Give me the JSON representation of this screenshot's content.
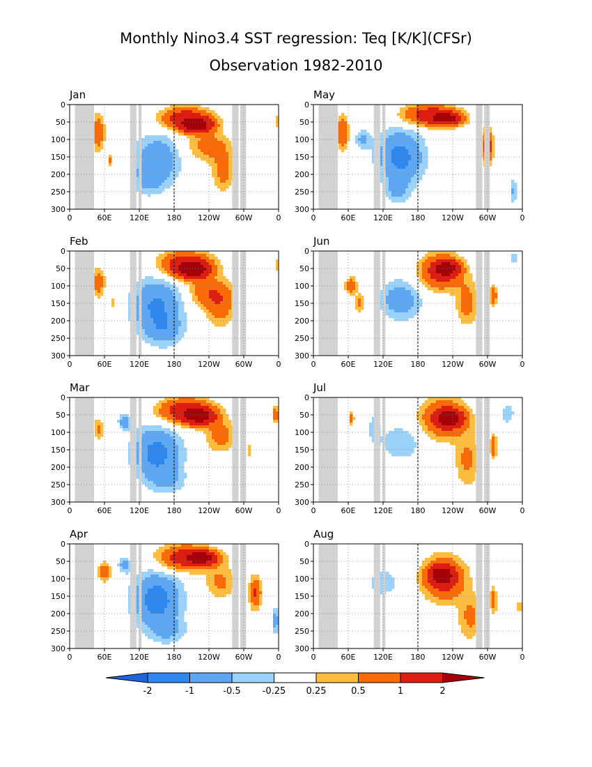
{
  "title_line1": "Monthly Nino3.4 SST regression: Teq [K/K](CFSr)",
  "title_line2": "Observation 1982-2010",
  "chart_data": {
    "type": "heatmap",
    "x_tick_labels": [
      "0",
      "60E",
      "120E",
      "180",
      "120W",
      "60W",
      "0"
    ],
    "y_tick_labels": [
      "0",
      "50",
      "100",
      "150",
      "200",
      "250",
      "300"
    ],
    "xlim_deg_east": [
      0,
      360
    ],
    "ylim_depth": [
      300,
      0
    ],
    "grid": true,
    "land_mask_lon_ranges": [
      [
        9,
        42
      ],
      [
        104,
        115
      ],
      [
        119,
        124
      ],
      [
        280,
        291
      ],
      [
        294,
        304
      ]
    ],
    "dateline_lon": 180,
    "colorbar": {
      "labels": [
        "-2",
        "-1",
        "-0.5",
        "-0.25",
        "0.25",
        "0.5",
        "1",
        "2"
      ],
      "colors": [
        "#1e64dc",
        "#2f87ee",
        "#5ea7f3",
        "#9bd2fa",
        "#ffffff",
        "#fcbd40",
        "#fa6a06",
        "#dc1d11",
        "#a5000a"
      ]
    },
    "panels": [
      {
        "label": "Jan",
        "blobs": [
          {
            "lon": 200,
            "depth": 40,
            "lw": 40,
            "lh": 30,
            "v": 1.6
          },
          {
            "lon": 220,
            "depth": 60,
            "lw": 26,
            "lh": 20,
            "v": 2.3
          },
          {
            "lon": 265,
            "depth": 190,
            "lw": 18,
            "lh": 55,
            "v": 0.7
          },
          {
            "lon": 240,
            "depth": 120,
            "lw": 35,
            "lh": 40,
            "v": 0.7
          },
          {
            "lon": 150,
            "depth": 160,
            "lw": 38,
            "lh": 70,
            "v": -0.9
          },
          {
            "lon": 135,
            "depth": 220,
            "lw": 25,
            "lh": 40,
            "v": -0.4
          },
          {
            "lon": 50,
            "depth": 80,
            "lw": 10,
            "lh": 55,
            "v": 0.8
          },
          {
            "lon": 70,
            "depth": 160,
            "lw": 5,
            "lh": 15,
            "v": 0.6
          },
          {
            "lon": 358,
            "depth": 50,
            "lw": 5,
            "lh": 20,
            "v": 0.5
          }
        ]
      },
      {
        "label": "Feb",
        "blobs": [
          {
            "lon": 200,
            "depth": 40,
            "lw": 42,
            "lh": 35,
            "v": 1.7
          },
          {
            "lon": 215,
            "depth": 55,
            "lw": 24,
            "lh": 22,
            "v": 2.2
          },
          {
            "lon": 260,
            "depth": 160,
            "lw": 25,
            "lh": 55,
            "v": 0.7
          },
          {
            "lon": 240,
            "depth": 120,
            "lw": 35,
            "lh": 40,
            "v": 0.8
          },
          {
            "lon": 150,
            "depth": 160,
            "lw": 42,
            "lh": 80,
            "v": -1.1
          },
          {
            "lon": 165,
            "depth": 230,
            "lw": 30,
            "lh": 40,
            "v": -0.5
          },
          {
            "lon": 75,
            "depth": 150,
            "lw": 5,
            "lh": 15,
            "v": 0.5
          },
          {
            "lon": 50,
            "depth": 90,
            "lw": 10,
            "lh": 40,
            "v": 0.8
          },
          {
            "lon": 358,
            "depth": 40,
            "lw": 5,
            "lh": 20,
            "v": 0.5
          }
        ]
      },
      {
        "label": "Mar",
        "blobs": [
          {
            "lon": 200,
            "depth": 40,
            "lw": 45,
            "lh": 35,
            "v": 1.6
          },
          {
            "lon": 225,
            "depth": 55,
            "lw": 24,
            "lh": 22,
            "v": 2.1
          },
          {
            "lon": 260,
            "depth": 110,
            "lw": 25,
            "lh": 45,
            "v": 0.7
          },
          {
            "lon": 150,
            "depth": 160,
            "lw": 40,
            "lh": 75,
            "v": -1.2
          },
          {
            "lon": 95,
            "depth": 70,
            "lw": 10,
            "lh": 20,
            "v": -0.8
          },
          {
            "lon": 170,
            "depth": 240,
            "lw": 30,
            "lh": 35,
            "v": -0.4
          },
          {
            "lon": 50,
            "depth": 90,
            "lw": 8,
            "lh": 30,
            "v": 0.6
          },
          {
            "lon": 355,
            "depth": 50,
            "lw": 6,
            "lh": 25,
            "v": 0.8
          },
          {
            "lon": 310,
            "depth": 150,
            "lw": 5,
            "lh": 20,
            "v": 0.5
          }
        ]
      },
      {
        "label": "Apr",
        "blobs": [
          {
            "lon": 200,
            "depth": 40,
            "lw": 45,
            "lh": 35,
            "v": 1.5
          },
          {
            "lon": 230,
            "depth": 40,
            "lw": 24,
            "lh": 18,
            "v": 2.1
          },
          {
            "lon": 260,
            "depth": 110,
            "lw": 25,
            "lh": 45,
            "v": 0.6
          },
          {
            "lon": 150,
            "depth": 160,
            "lw": 40,
            "lh": 75,
            "v": -1.3
          },
          {
            "lon": 95,
            "depth": 60,
            "lw": 10,
            "lh": 20,
            "v": -0.8
          },
          {
            "lon": 170,
            "depth": 250,
            "lw": 30,
            "lh": 35,
            "v": -0.5
          },
          {
            "lon": 60,
            "depth": 80,
            "lw": 10,
            "lh": 25,
            "v": 0.9
          },
          {
            "lon": 320,
            "depth": 140,
            "lw": 10,
            "lh": 45,
            "v": 1.1
          },
          {
            "lon": 355,
            "depth": 220,
            "lw": 6,
            "lh": 40,
            "v": -0.7
          }
        ]
      },
      {
        "label": "May",
        "blobs": [
          {
            "lon": 200,
            "depth": 30,
            "lw": 45,
            "lh": 30,
            "v": 1.4
          },
          {
            "lon": 230,
            "depth": 40,
            "lw": 25,
            "lh": 18,
            "v": 2.1
          },
          {
            "lon": 150,
            "depth": 150,
            "lw": 38,
            "lh": 75,
            "v": -1.2
          },
          {
            "lon": 145,
            "depth": 250,
            "lw": 20,
            "lh": 35,
            "v": -0.5
          },
          {
            "lon": 85,
            "depth": 100,
            "lw": 14,
            "lh": 25,
            "v": -0.6
          },
          {
            "lon": 50,
            "depth": 80,
            "lw": 10,
            "lh": 45,
            "v": 1.0
          },
          {
            "lon": 300,
            "depth": 120,
            "lw": 8,
            "lh": 45,
            "v": 1.7
          },
          {
            "lon": 345,
            "depth": 250,
            "lw": 5,
            "lh": 35,
            "v": -0.6
          }
        ]
      },
      {
        "label": "Jun",
        "blobs": [
          {
            "lon": 220,
            "depth": 60,
            "lw": 35,
            "lh": 50,
            "v": 1.3
          },
          {
            "lon": 230,
            "depth": 50,
            "lw": 20,
            "lh": 20,
            "v": 2.1
          },
          {
            "lon": 265,
            "depth": 150,
            "lw": 18,
            "lh": 60,
            "v": 0.7
          },
          {
            "lon": 150,
            "depth": 140,
            "lw": 35,
            "lh": 55,
            "v": -0.8
          },
          {
            "lon": 65,
            "depth": 100,
            "lw": 10,
            "lh": 25,
            "v": 0.8
          },
          {
            "lon": 80,
            "depth": 150,
            "lw": 7,
            "lh": 25,
            "v": 0.7
          },
          {
            "lon": 310,
            "depth": 130,
            "lw": 6,
            "lh": 30,
            "v": 0.9
          },
          {
            "lon": 345,
            "depth": 20,
            "lw": 8,
            "lh": 15,
            "v": -0.4
          }
        ]
      },
      {
        "label": "Jul",
        "blobs": [
          {
            "lon": 225,
            "depth": 60,
            "lw": 38,
            "lh": 55,
            "v": 1.2
          },
          {
            "lon": 235,
            "depth": 60,
            "lw": 22,
            "lh": 22,
            "v": 2.1
          },
          {
            "lon": 265,
            "depth": 180,
            "lw": 20,
            "lh": 75,
            "v": 0.6
          },
          {
            "lon": 150,
            "depth": 130,
            "lw": 35,
            "lh": 50,
            "v": -0.5
          },
          {
            "lon": 105,
            "depth": 90,
            "lw": 10,
            "lh": 45,
            "v": -0.4
          },
          {
            "lon": 310,
            "depth": 140,
            "lw": 6,
            "lh": 35,
            "v": 0.8
          },
          {
            "lon": 335,
            "depth": 45,
            "lw": 12,
            "lh": 35,
            "v": -0.4
          },
          {
            "lon": 65,
            "depth": 60,
            "lw": 5,
            "lh": 20,
            "v": 0.6
          }
        ]
      },
      {
        "label": "Aug",
        "blobs": [
          {
            "lon": 225,
            "depth": 100,
            "lw": 35,
            "lh": 60,
            "v": 1.3
          },
          {
            "lon": 220,
            "depth": 90,
            "lw": 20,
            "lh": 25,
            "v": 2.1
          },
          {
            "lon": 270,
            "depth": 210,
            "lw": 20,
            "lh": 65,
            "v": 0.6
          },
          {
            "lon": 120,
            "depth": 110,
            "lw": 30,
            "lh": 45,
            "v": -0.4
          },
          {
            "lon": 310,
            "depth": 160,
            "lw": 6,
            "lh": 35,
            "v": 0.8
          },
          {
            "lon": 355,
            "depth": 180,
            "lw": 5,
            "lh": 20,
            "v": 0.5
          }
        ]
      }
    ]
  }
}
